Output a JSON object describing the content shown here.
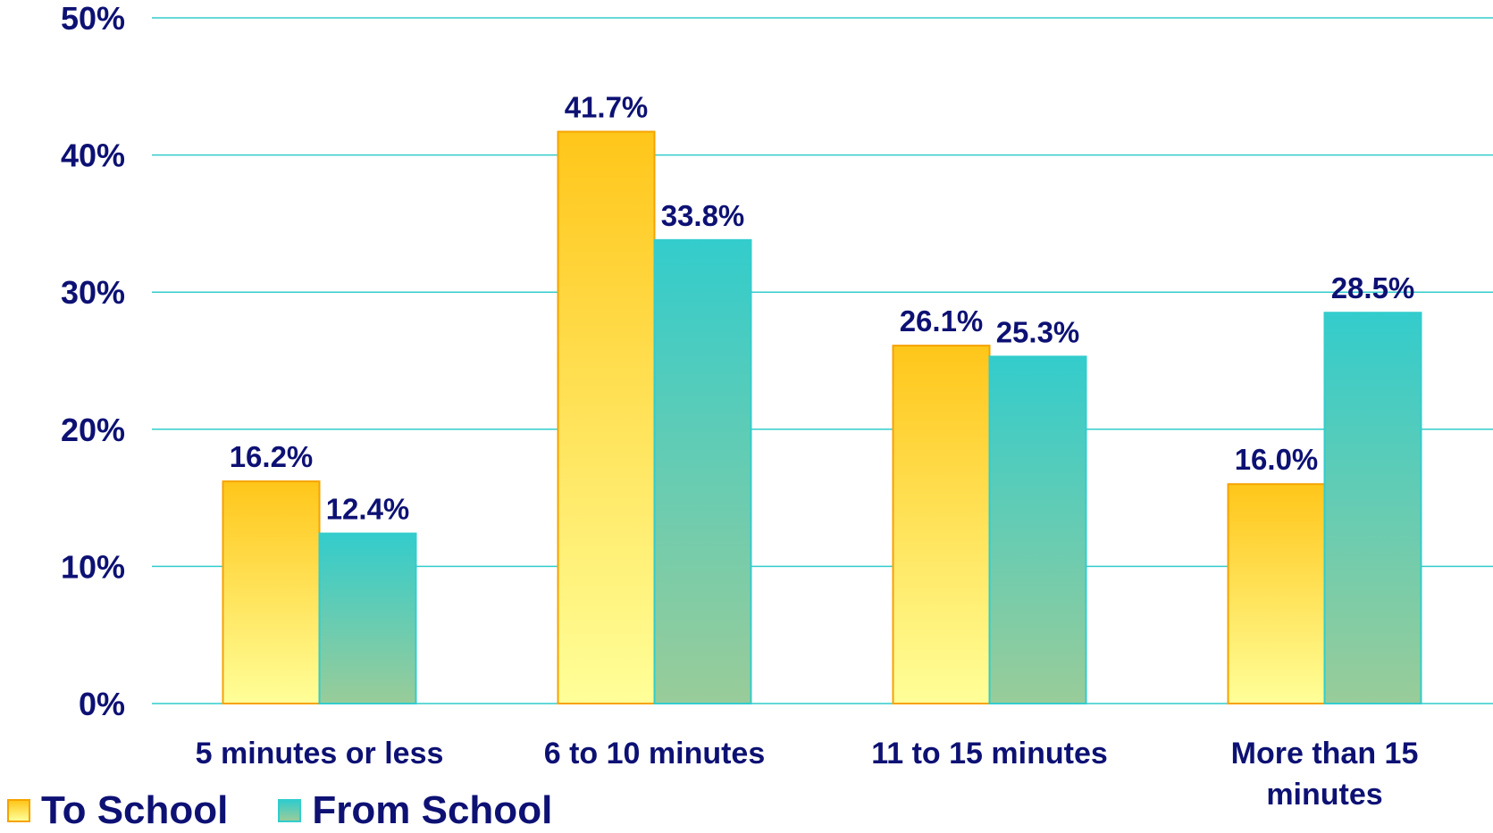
{
  "chart_data": {
    "type": "bar",
    "categories": [
      "5 minutes or less",
      "6 to 10 minutes",
      "11 to 15 minutes",
      "More than 15 minutes"
    ],
    "category_lines": [
      [
        "5 minutes or less"
      ],
      [
        "6 to 10 minutes"
      ],
      [
        "11 to 15 minutes"
      ],
      [
        "More than 15",
        "minutes"
      ]
    ],
    "series": [
      {
        "name": "To School",
        "values": [
          16.2,
          41.7,
          26.1,
          16.0
        ],
        "labels": [
          "16.2%",
          "41.7%",
          "26.1%",
          "16.0%"
        ],
        "color_top": "#ffc61a",
        "color_bottom": "#ffff99",
        "border": "#f5a300"
      },
      {
        "name": "From School",
        "values": [
          12.4,
          33.8,
          25.3,
          28.5
        ],
        "labels": [
          "12.4%",
          "33.8%",
          "25.3%",
          "28.5%"
        ],
        "color_top": "#33cccc",
        "color_bottom": "#99cc99",
        "border": "#33cccc"
      }
    ],
    "ylim": [
      0,
      50
    ],
    "yticks": [
      0,
      10,
      20,
      30,
      40,
      50
    ],
    "ytick_labels": [
      "0%",
      "10%",
      "20%",
      "30%",
      "40%",
      "50%"
    ],
    "grid": true,
    "grid_color": "#33cccc",
    "text_color": "#0d1173",
    "legend_position": "bottom-left"
  },
  "legend": {
    "to_school": "To School",
    "from_school": "From School"
  }
}
